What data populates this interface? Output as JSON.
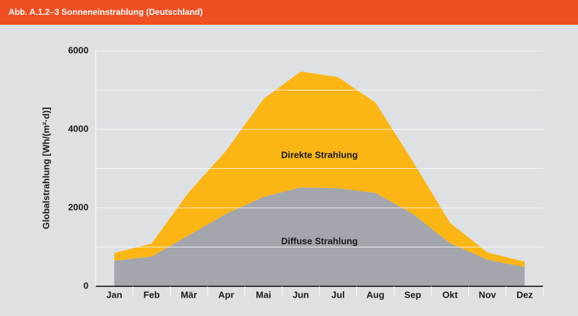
{
  "chart_data": {
    "type": "stacked_area",
    "title": "Abb. A.1.2–3   Sonneneinstrahlung (Deutschland)",
    "y_label": "Globalstrahlung [Wh/(m²·d)]",
    "categories": [
      "Jan",
      "Feb",
      "Mär",
      "Apr",
      "Mai",
      "Jun",
      "Jul",
      "Aug",
      "Sep",
      "Okt",
      "Nov",
      "Dez"
    ],
    "series": [
      {
        "name": "Diffuse Strahlung",
        "color": "#a3a6ad",
        "values": [
          650,
          760,
          1300,
          1850,
          2280,
          2520,
          2500,
          2380,
          1850,
          1100,
          680,
          490
        ]
      },
      {
        "name": "Direkte Strahlung",
        "color": "#fbb615",
        "values": [
          200,
          330,
          1100,
          1610,
          2495,
          2955,
          2830,
          2305,
          1340,
          520,
          185,
          140
        ]
      }
    ],
    "ylim": [
      0,
      6000
    ],
    "yticks": [
      0,
      2000,
      4000,
      6000
    ],
    "minor_yticks": [
      1000,
      3000,
      5000
    ],
    "grid": true
  }
}
